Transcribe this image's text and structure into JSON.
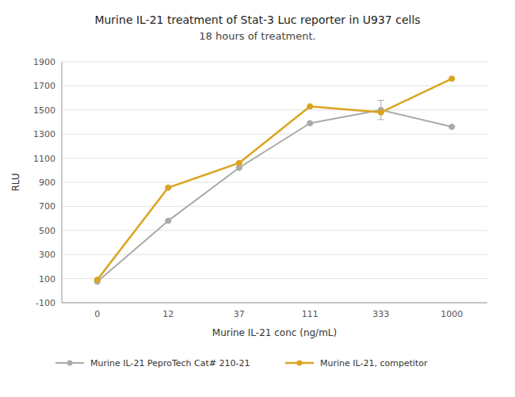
{
  "chart_data": {
    "type": "line",
    "title": "Murine IL-21 treatment of Stat-3 Luc reporter in U937 cells",
    "subtitle": "18 hours of treatment.",
    "x_label": "Murine IL-21 conc (ng/mL)",
    "y_label": "RLU",
    "categories": [
      "0",
      "12",
      "37",
      "111",
      "333",
      "1000"
    ],
    "series": [
      {
        "name": "Murine IL-21 PeproTech Cat# 210-21",
        "color": "#aaaaaa",
        "marker": "circle",
        "values": [
          75,
          580,
          1020,
          1390,
          1500,
          1360
        ],
        "errors": [
          0,
          0,
          0,
          0,
          80,
          0
        ]
      },
      {
        "name": "Murine IL-21, competitor",
        "color": "#DAA520",
        "marker": "circle",
        "values": [
          90,
          855,
          1060,
          1530,
          1480,
          1760
        ],
        "errors": [
          0,
          0,
          0,
          0,
          0,
          0
        ]
      }
    ],
    "ylim": [
      -100,
      1900
    ],
    "yticks": [
      -100,
      100,
      300,
      500,
      700,
      900,
      1100,
      1300,
      1500,
      1700,
      1900
    ],
    "grid": true,
    "legend": "bottom"
  }
}
